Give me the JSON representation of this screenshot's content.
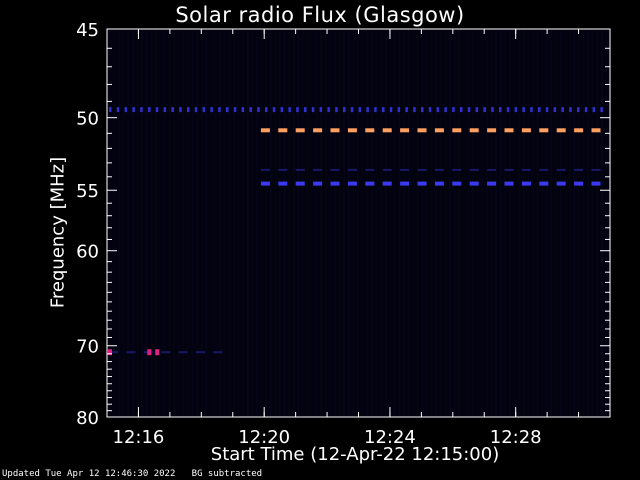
{
  "chart_data": {
    "type": "heatmap",
    "title": "Solar radio Flux (Glasgow)",
    "xlabel": "Start Time (12-Apr-22 12:15:00)",
    "ylabel": "Frequency [MHz]",
    "footer": "Updated Tue Apr 12 12:46:30 2022   BG subtracted",
    "x_range": [
      "12:15:00",
      "12:31:00"
    ],
    "x_ticks": [
      "12:16",
      "12:20",
      "12:24",
      "12:28"
    ],
    "y_range_mhz": [
      45,
      80
    ],
    "y_ticks": [
      45,
      50,
      55,
      60,
      70,
      80
    ],
    "y_tick_labels": [
      "45",
      "50",
      "55",
      "60",
      "70",
      "80"
    ],
    "features": [
      {
        "name": "dotted line near 49.5 MHz",
        "freq_mhz": 49.5,
        "start": "12:15:00",
        "end": "12:31:00",
        "color": "#3030d0",
        "style": "dots"
      },
      {
        "name": "persistent emission near 50.8 MHz",
        "freq_mhz": 50.8,
        "start": "12:19:50",
        "end": "12:31:00",
        "color": "#ffa060",
        "style": "dashes"
      },
      {
        "name": "faint emission near 53.5 MHz",
        "freq_mhz": 53.5,
        "start": "12:19:50",
        "end": "12:31:00",
        "color": "#2a2ab0",
        "style": "faint-dashes"
      },
      {
        "name": "emission near 54.5 MHz",
        "freq_mhz": 54.5,
        "start": "12:19:50",
        "end": "12:31:00",
        "color": "#3a3af0",
        "style": "dashes"
      },
      {
        "name": "emission near 70.8 MHz",
        "freq_mhz": 70.8,
        "start": "12:15:00",
        "end": "12:19:00",
        "color": "#2a2ab0",
        "style": "faint-dashes"
      }
    ],
    "hot_spots": [
      {
        "time": "12:15:00",
        "freq_mhz": 70.8,
        "color": "#e02080"
      },
      {
        "time": "12:16:15",
        "freq_mhz": 70.8,
        "color": "#e02080"
      },
      {
        "time": "12:16:30",
        "freq_mhz": 70.8,
        "color": "#e02080"
      }
    ],
    "colors": {
      "background": "#000000",
      "plot_background": "#03030f",
      "axes": "#ffffff"
    }
  }
}
